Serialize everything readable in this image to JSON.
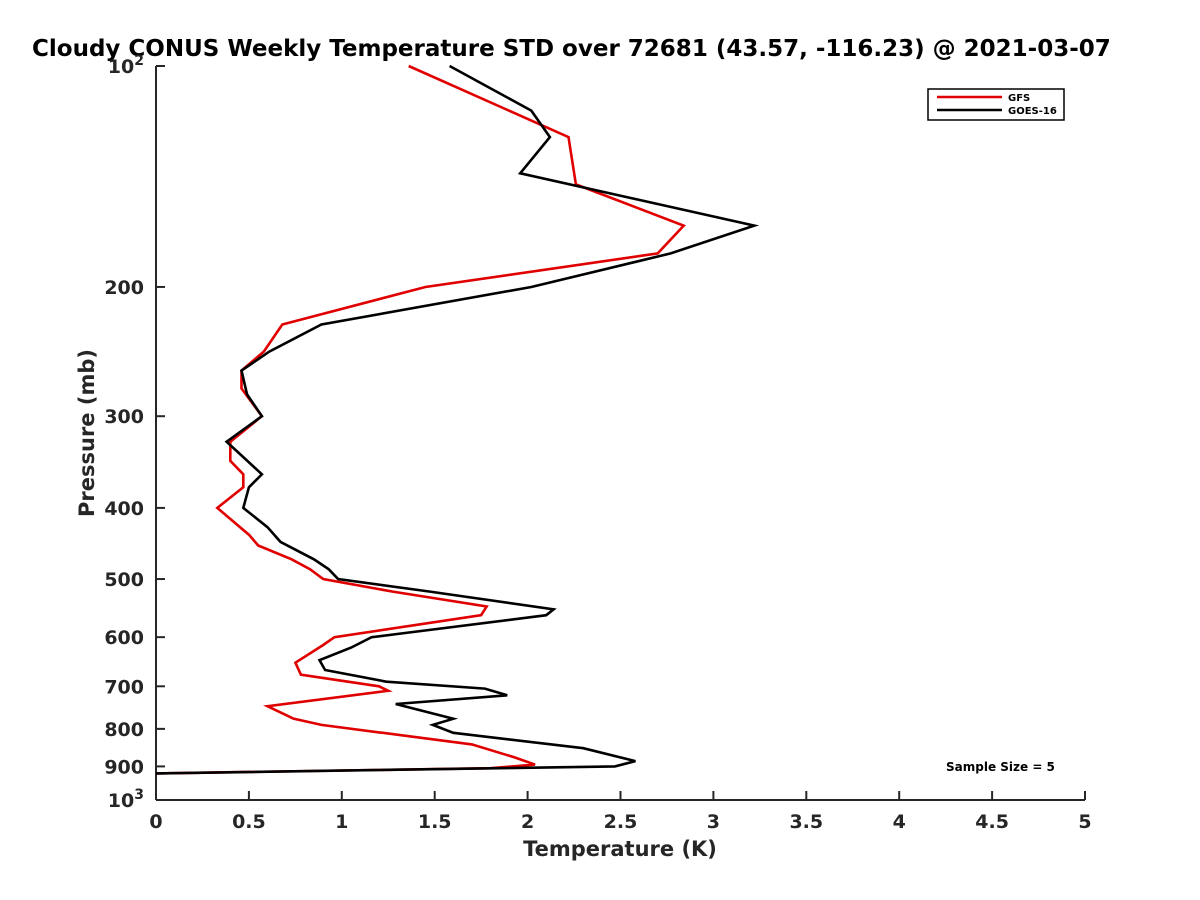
{
  "chart_data": {
    "type": "line",
    "title": "Cloudy CONUS Weekly Temperature STD over 72681 (43.57, -116.23) @ 2021-03-07",
    "xlabel": "Temperature (K)",
    "ylabel": "Pressure (mb)",
    "xlim": [
      0,
      5
    ],
    "ylim": [
      100,
      1000
    ],
    "yscale": "log",
    "y_reversed": true,
    "grid": false,
    "legend_position": "top-right",
    "x_ticks": [
      "0",
      "0.5",
      "1",
      "1.5",
      "2",
      "2.5",
      "3",
      "3.5",
      "4",
      "4.5",
      "5"
    ],
    "y_ticks": [
      {
        "value": 100,
        "label": "10",
        "sup": "2"
      },
      {
        "value": 200,
        "label": "200",
        "sup": ""
      },
      {
        "value": 300,
        "label": "300",
        "sup": ""
      },
      {
        "value": 400,
        "label": "400",
        "sup": ""
      },
      {
        "value": 500,
        "label": "500",
        "sup": ""
      },
      {
        "value": 600,
        "label": "600",
        "sup": ""
      },
      {
        "value": 700,
        "label": "700",
        "sup": ""
      },
      {
        "value": 800,
        "label": "800",
        "sup": ""
      },
      {
        "value": 900,
        "label": "900",
        "sup": ""
      },
      {
        "value": 1000,
        "label": "10",
        "sup": "3"
      }
    ],
    "series": [
      {
        "name": "GFS",
        "color": "#e00000",
        "points": [
          [
            1.36,
            100
          ],
          [
            2.22,
            125
          ],
          [
            2.26,
            145
          ],
          [
            2.84,
            165
          ],
          [
            2.7,
            180
          ],
          [
            1.45,
            200
          ],
          [
            0.68,
            225
          ],
          [
            0.58,
            245
          ],
          [
            0.46,
            260
          ],
          [
            0.46,
            275
          ],
          [
            0.57,
            300
          ],
          [
            0.4,
            325
          ],
          [
            0.4,
            345
          ],
          [
            0.47,
            360
          ],
          [
            0.47,
            375
          ],
          [
            0.33,
            400
          ],
          [
            0.5,
            435
          ],
          [
            0.55,
            450
          ],
          [
            0.73,
            470
          ],
          [
            0.83,
            485
          ],
          [
            0.9,
            500
          ],
          [
            1.27,
            520
          ],
          [
            1.78,
            545
          ],
          [
            1.75,
            560
          ],
          [
            0.96,
            600
          ],
          [
            0.9,
            615
          ],
          [
            0.75,
            650
          ],
          [
            0.78,
            675
          ],
          [
            1.2,
            700
          ],
          [
            1.25,
            710
          ],
          [
            0.6,
            745
          ],
          [
            0.74,
            775
          ],
          [
            0.89,
            790
          ],
          [
            1.7,
            840
          ],
          [
            1.93,
            875
          ],
          [
            2.04,
            895
          ],
          [
            1.8,
            905
          ],
          [
            0.0,
            920
          ]
        ]
      },
      {
        "name": "GOES-16",
        "color": "#000000",
        "points": [
          [
            1.58,
            100
          ],
          [
            2.02,
            115
          ],
          [
            2.12,
            125
          ],
          [
            1.96,
            140
          ],
          [
            3.22,
            165
          ],
          [
            2.77,
            180
          ],
          [
            2.02,
            200
          ],
          [
            0.89,
            225
          ],
          [
            0.61,
            245
          ],
          [
            0.46,
            260
          ],
          [
            0.49,
            280
          ],
          [
            0.57,
            300
          ],
          [
            0.38,
            325
          ],
          [
            0.57,
            360
          ],
          [
            0.5,
            375
          ],
          [
            0.47,
            400
          ],
          [
            0.6,
            425
          ],
          [
            0.67,
            445
          ],
          [
            0.85,
            470
          ],
          [
            0.93,
            485
          ],
          [
            0.98,
            500
          ],
          [
            1.47,
            520
          ],
          [
            2.14,
            550
          ],
          [
            2.1,
            560
          ],
          [
            1.16,
            600
          ],
          [
            1.05,
            620
          ],
          [
            0.88,
            645
          ],
          [
            0.91,
            665
          ],
          [
            1.24,
            690
          ],
          [
            1.77,
            705
          ],
          [
            1.89,
            720
          ],
          [
            1.29,
            740
          ],
          [
            1.6,
            775
          ],
          [
            1.49,
            790
          ],
          [
            1.6,
            810
          ],
          [
            2.3,
            850
          ],
          [
            2.58,
            885
          ],
          [
            2.47,
            900
          ],
          [
            0.0,
            920
          ]
        ]
      }
    ],
    "annotation": "Sample Size = 5"
  }
}
